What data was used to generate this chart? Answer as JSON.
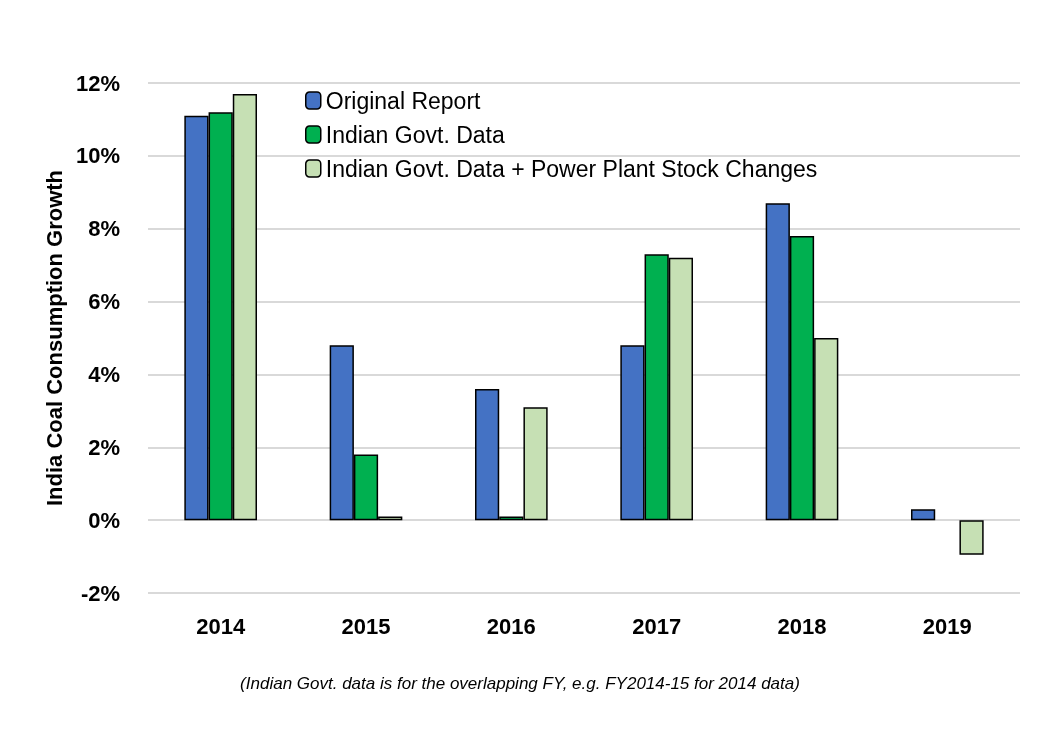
{
  "chart_data": {
    "type": "bar",
    "ylabel": "India Coal Consumption Growth",
    "categories": [
      "2014",
      "2015",
      "2016",
      "2017",
      "2018",
      "2019"
    ],
    "series": [
      {
        "name": "Original Report",
        "color": "#4472c4",
        "values": [
          11.1,
          4.8,
          3.6,
          4.8,
          8.7,
          0.3
        ]
      },
      {
        "name": "Indian Govt. Data",
        "color": "#00b050",
        "values": [
          11.2,
          1.8,
          0.1,
          7.3,
          7.8,
          null
        ]
      },
      {
        "name": "Indian Govt. Data + Power Plant Stock Changes",
        "color": "#c6e0b4",
        "values": [
          11.7,
          0.1,
          3.1,
          7.2,
          5.0,
          -0.95
        ]
      }
    ],
    "ylim": [
      -2,
      12
    ],
    "yticks": [
      {
        "value": -2,
        "label": "-2%"
      },
      {
        "value": 0,
        "label": "0%"
      },
      {
        "value": 2,
        "label": "2%"
      },
      {
        "value": 4,
        "label": "4%"
      },
      {
        "value": 6,
        "label": "6%"
      },
      {
        "value": 8,
        "label": "8%"
      },
      {
        "value": 10,
        "label": "10%"
      },
      {
        "value": 12,
        "label": "12%"
      }
    ],
    "grid": "y",
    "legend": "top left",
    "annotations": [
      "(Indian Govt. data is for the overlapping FY, e.g. FY2014-15 for 2014 data)"
    ]
  }
}
